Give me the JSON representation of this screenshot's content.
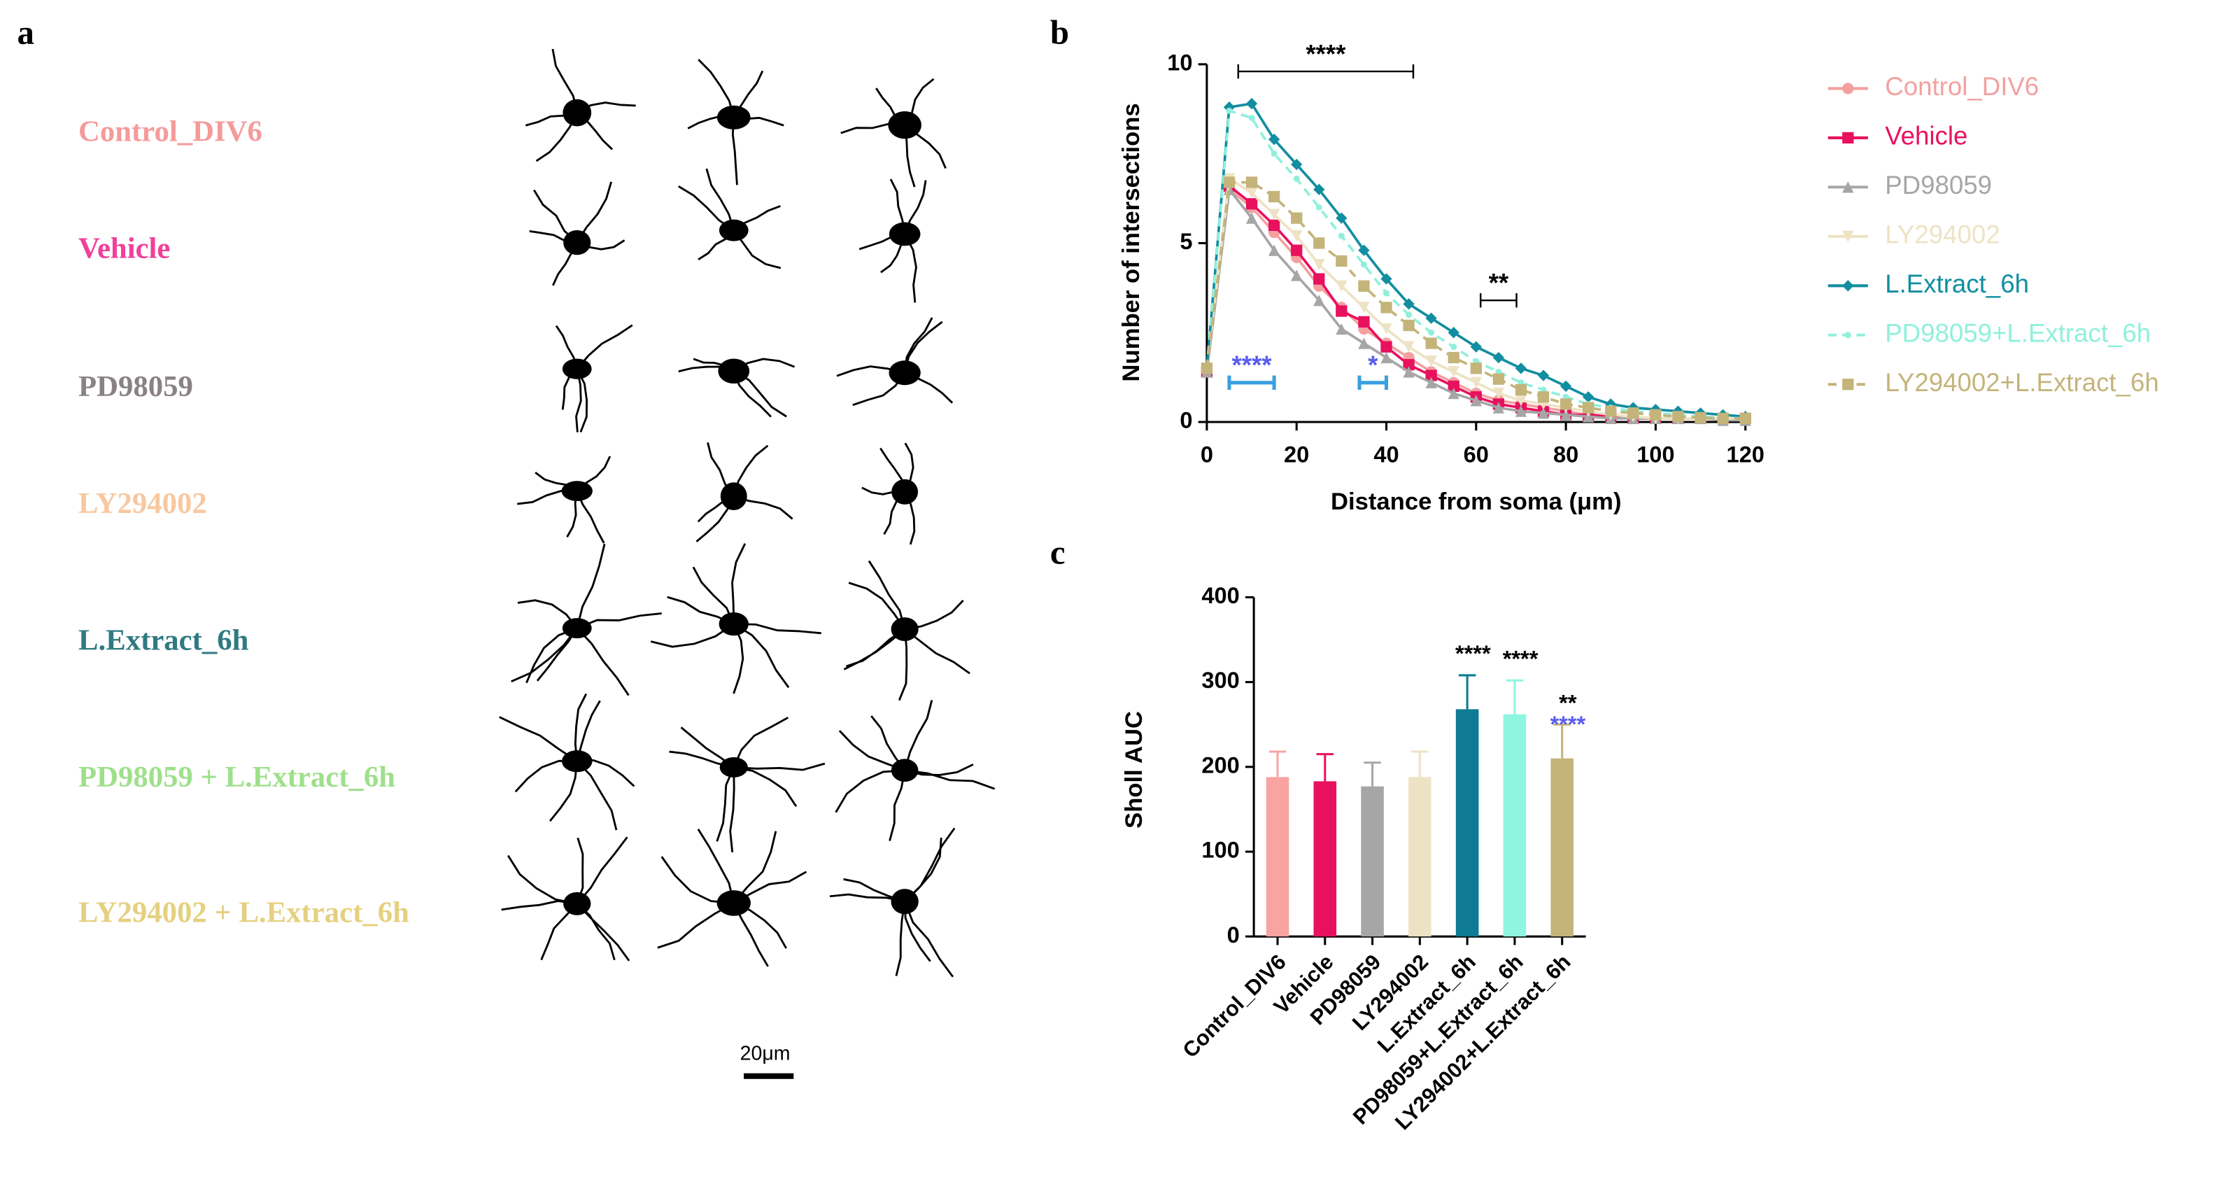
{
  "panel_a": {
    "panel_label": "a",
    "groups": [
      {
        "label": "Control_DIV6",
        "color": "#f59a9a"
      },
      {
        "label": "Vehicle",
        "color": "#f0409a"
      },
      {
        "label": "PD98059",
        "color": "#8a8282"
      },
      {
        "label": "LY294002",
        "color": "#f7c8a0"
      },
      {
        "label": "L.Extract_6h",
        "color": "#2f7a80"
      },
      {
        "label": "PD98059 + L.Extract_6h",
        "color": "#9ee08a"
      },
      {
        "label": "LY294002 + L.Extract_6h",
        "color": "#e5d080"
      }
    ],
    "scale_bar": "20μm"
  },
  "chart_data": [
    {
      "type": "line",
      "panel_label": "b",
      "x_label": "Distance from soma (μm)",
      "y_label": "Number of intersections",
      "x": [
        0,
        5,
        10,
        15,
        20,
        25,
        30,
        35,
        40,
        45,
        50,
        55,
        60,
        65,
        70,
        75,
        80,
        85,
        90,
        95,
        100,
        105,
        110,
        115,
        120
      ],
      "xlim": [
        0,
        120
      ],
      "xticks": [
        0,
        20,
        40,
        60,
        80,
        100,
        120
      ],
      "ylim": [
        0,
        10
      ],
      "yticks": [
        0,
        5,
        10
      ],
      "legend": "right",
      "series": [
        {
          "name": "Control_DIV6",
          "color": "#f4a0a0",
          "marker": "circle",
          "dash": false,
          "values": [
            1.4,
            6.5,
            6.0,
            5.3,
            4.6,
            3.8,
            3.2,
            2.6,
            2.2,
            1.8,
            1.4,
            1.1,
            0.8,
            0.6,
            0.5,
            0.4,
            0.3,
            0.2,
            0.2,
            0.15,
            0.1,
            0.1,
            0.1,
            0.1,
            0.1
          ]
        },
        {
          "name": "Vehicle",
          "color": "#e8115e",
          "marker": "square",
          "dash": false,
          "values": [
            1.4,
            6.6,
            6.1,
            5.5,
            4.8,
            4.0,
            3.1,
            2.8,
            2.1,
            1.6,
            1.3,
            1.0,
            0.7,
            0.5,
            0.4,
            0.3,
            0.2,
            0.2,
            0.15,
            0.1,
            0.1,
            0.1,
            0.1,
            0.1,
            0.1
          ]
        },
        {
          "name": "PD98059",
          "color": "#a6a6a6",
          "marker": "triangle",
          "dash": false,
          "values": [
            1.4,
            6.5,
            5.7,
            4.8,
            4.1,
            3.4,
            2.6,
            2.2,
            1.8,
            1.4,
            1.1,
            0.8,
            0.6,
            0.4,
            0.3,
            0.25,
            0.2,
            0.15,
            0.1,
            0.1,
            0.1,
            0.1,
            0.1,
            0.05,
            0.05
          ]
        },
        {
          "name": "LY294002",
          "color": "#ede3c4",
          "marker": "down-triangle",
          "dash": false,
          "values": [
            1.5,
            6.8,
            6.4,
            5.8,
            5.2,
            4.4,
            3.8,
            3.2,
            2.6,
            2.1,
            1.7,
            1.4,
            1.1,
            0.8,
            0.6,
            0.5,
            0.4,
            0.3,
            0.2,
            0.15,
            0.1,
            0.1,
            0.1,
            0.1,
            0.1
          ]
        },
        {
          "name": "L.Extract_6h",
          "color": "#118ea0",
          "marker": "diamond",
          "dash": false,
          "values": [
            1.5,
            8.8,
            8.9,
            7.9,
            7.2,
            6.5,
            5.7,
            4.8,
            4.0,
            3.3,
            2.9,
            2.5,
            2.1,
            1.8,
            1.5,
            1.3,
            1.0,
            0.7,
            0.5,
            0.4,
            0.35,
            0.3,
            0.25,
            0.2,
            0.15
          ]
        },
        {
          "name": "PD98059+L.Extract_6h",
          "color": "#8ff0dc",
          "marker": "dot",
          "dash": true,
          "values": [
            1.5,
            8.7,
            8.5,
            7.5,
            6.8,
            6.0,
            5.2,
            4.4,
            3.6,
            3.0,
            2.5,
            2.1,
            1.7,
            1.4,
            1.1,
            0.9,
            0.7,
            0.5,
            0.4,
            0.3,
            0.25,
            0.2,
            0.15,
            0.12,
            0.1
          ]
        },
        {
          "name": "LY294002+L.Extract_6h",
          "color": "#c4b47a",
          "marker": "square",
          "dash": true,
          "values": [
            1.5,
            6.7,
            6.7,
            6.3,
            5.7,
            5.0,
            4.5,
            3.8,
            3.2,
            2.7,
            2.2,
            1.8,
            1.5,
            1.2,
            0.9,
            0.7,
            0.5,
            0.4,
            0.3,
            0.25,
            0.2,
            0.15,
            0.12,
            0.1,
            0.1
          ]
        }
      ],
      "annotations": [
        {
          "text": "****",
          "x1": 7,
          "x2": 46,
          "y": 9.8,
          "color": "#000000"
        },
        {
          "text": "**",
          "x1": 61,
          "x2": 69,
          "y": 3.4,
          "color": "#000000"
        },
        {
          "text": "****",
          "x1": 5,
          "x2": 15,
          "y": 1.1,
          "color": "#5b5bf0",
          "bracket_color": "#3aa0e0"
        },
        {
          "text": "*",
          "x1": 34,
          "x2": 40,
          "y": 1.1,
          "color": "#5b5bf0",
          "bracket_color": "#3aa0e0"
        }
      ]
    },
    {
      "type": "bar",
      "panel_label": "c",
      "y_label": "Sholl AUC",
      "categories": [
        "Control_DIV6",
        "Vehicle",
        "PD98059",
        "LY294002",
        "L.Extract_6h",
        "PD98059+L.Extract_6h",
        "LY294002+L.Extract_6h"
      ],
      "values": [
        188,
        183,
        177,
        188,
        268,
        262,
        210
      ],
      "errors": [
        30,
        32,
        28,
        30,
        40,
        40,
        40
      ],
      "colors": [
        "#f9a3a3",
        "#e8115e",
        "#a6a6a6",
        "#ede3c4",
        "#0e7a93",
        "#8ff5e0",
        "#c4b47a"
      ],
      "ylim": [
        0,
        400
      ],
      "yticks": [
        0,
        100,
        200,
        300,
        400
      ],
      "annotations": [
        {
          "category": "L.Extract_6h",
          "text": "****",
          "color": "#000000"
        },
        {
          "category": "PD98059+L.Extract_6h",
          "text": "****",
          "color": "#000000"
        },
        {
          "category": "LY294002+L.Extract_6h",
          "text": "**",
          "color": "#000000"
        },
        {
          "category": "LY294002+L.Extract_6h",
          "text": "****",
          "color": "#5b5bf0"
        }
      ]
    }
  ]
}
